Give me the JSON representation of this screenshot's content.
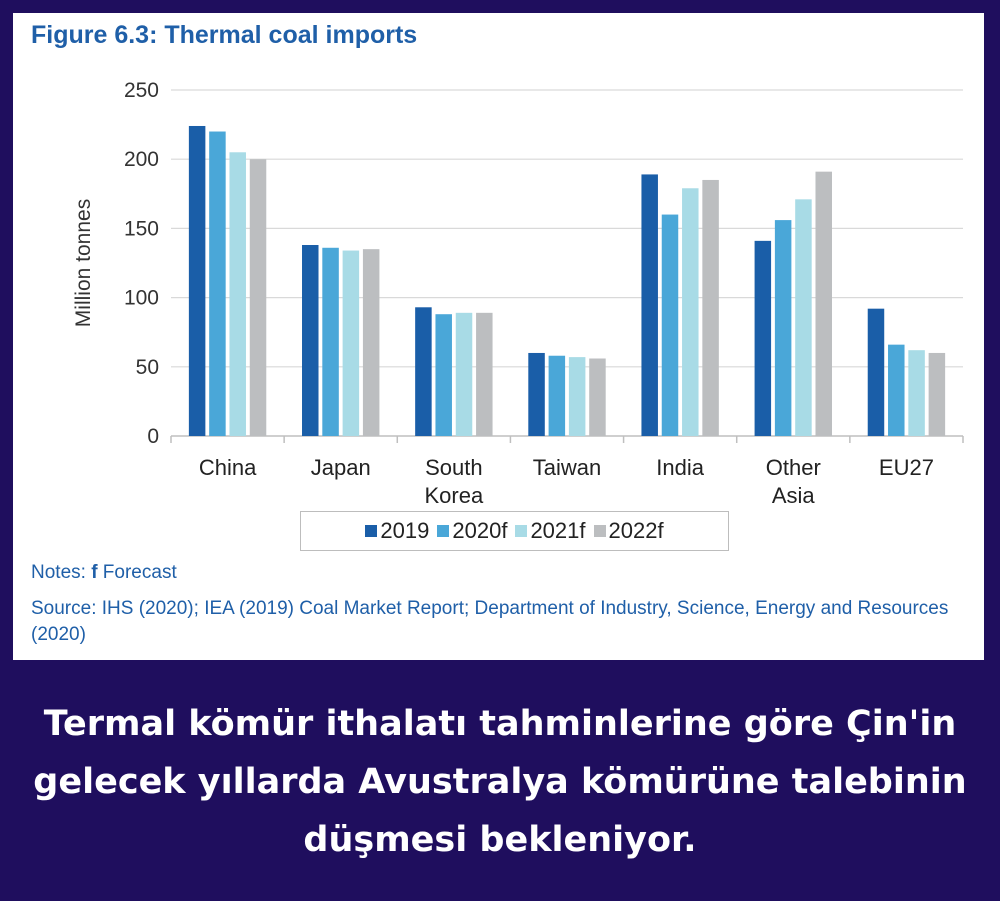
{
  "figure_title": "Figure 6.3: Thermal coal imports",
  "notes_label": "Notes: ",
  "notes_bold": "f",
  "notes_text": " Forecast",
  "source_text": "Source: IHS (2020); IEA (2019) Coal Market Report; Department of Industry, Science, Energy and Resources (2020)",
  "caption": "Termal kömür ithalatı tahminlerine göre Çin'in gelecek yıllarda Avustralya kömürüne talebinin düşmesi bekleniyor.",
  "colors": {
    "background": "#1f0e5e",
    "title": "#1f5fa8"
  },
  "chart_data": {
    "type": "bar",
    "ylabel": "Million tonnes",
    "ylim": [
      0,
      250
    ],
    "yticks": [
      0,
      50,
      100,
      150,
      200,
      250
    ],
    "grid": true,
    "legend_position": "bottom",
    "categories": [
      [
        "China"
      ],
      [
        "Japan"
      ],
      [
        "South",
        "Korea"
      ],
      [
        "Taiwan"
      ],
      [
        "India"
      ],
      [
        "Other",
        "Asia"
      ],
      [
        "EU27"
      ]
    ],
    "series": [
      {
        "name": "2019",
        "color": "#1a5ea8",
        "values": [
          224,
          138,
          93,
          60,
          189,
          141,
          92
        ]
      },
      {
        "name": "2020f",
        "color": "#4aa7d8",
        "values": [
          220,
          136,
          88,
          58,
          160,
          156,
          66
        ]
      },
      {
        "name": "2021f",
        "color": "#a8dbe6",
        "values": [
          205,
          134,
          89,
          57,
          179,
          171,
          62
        ]
      },
      {
        "name": "2022f",
        "color": "#bcbec0",
        "values": [
          200,
          135,
          89,
          56,
          185,
          191,
          60
        ]
      }
    ]
  }
}
